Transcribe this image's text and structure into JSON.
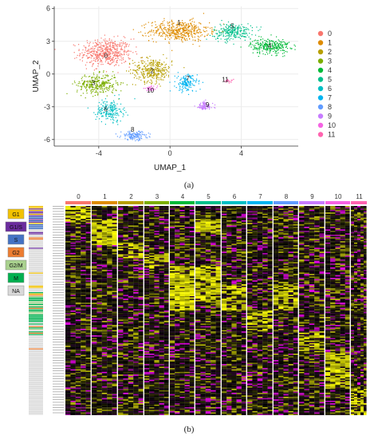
{
  "panel_a": {
    "caption": "(a)",
    "chart_data": {
      "type": "scatter",
      "xlabel": "UMAP_1",
      "ylabel": "UMAP_2",
      "xlim": [
        -6.5,
        7.2
      ],
      "ylim": [
        -6.6,
        6.2
      ],
      "x_ticks": [
        "-4",
        "0",
        "4"
      ],
      "x_tick_values": [
        -4,
        0,
        4
      ],
      "y_ticks": [
        "-6",
        "-3",
        "0",
        "3",
        "6"
      ],
      "y_tick_values": [
        -6,
        -3,
        0,
        3,
        6
      ],
      "grid": true,
      "legend_placement": "right",
      "series": [
        {
          "name": "0",
          "color": "#F8766D",
          "cx": -3.6,
          "cy": 2.0,
          "sx": 1.3,
          "sy": 1.15,
          "n": 520
        },
        {
          "name": "1",
          "color": "#DE8C00",
          "cx": 0.5,
          "cy": 4.0,
          "sx": 1.5,
          "sy": 0.85,
          "n": 470
        },
        {
          "name": "2",
          "color": "#B79F00",
          "cx": -1.0,
          "cy": 0.4,
          "sx": 1.0,
          "sy": 1.0,
          "n": 330
        },
        {
          "name": "3",
          "color": "#7CAE00",
          "cx": -4.1,
          "cy": -0.9,
          "sx": 1.05,
          "sy": 0.85,
          "n": 310
        },
        {
          "name": "4",
          "color": "#00BA38",
          "cx": 5.6,
          "cy": 2.6,
          "sx": 1.0,
          "sy": 0.65,
          "n": 270
        },
        {
          "name": "5",
          "color": "#00C08B",
          "cx": 3.5,
          "cy": 3.9,
          "sx": 1.0,
          "sy": 0.7,
          "n": 250
        },
        {
          "name": "6",
          "color": "#00BFC4",
          "cx": -3.4,
          "cy": -3.3,
          "sx": 0.7,
          "sy": 0.9,
          "n": 200
        },
        {
          "name": "7",
          "color": "#00B4F0",
          "cx": 0.9,
          "cy": -0.8,
          "sx": 0.55,
          "sy": 0.75,
          "n": 150
        },
        {
          "name": "8",
          "color": "#619CFF",
          "cx": -2.0,
          "cy": -5.6,
          "sx": 0.7,
          "sy": 0.35,
          "n": 140
        },
        {
          "name": "9",
          "color": "#C77CFF",
          "cx": 1.9,
          "cy": -2.9,
          "sx": 0.45,
          "sy": 0.4,
          "n": 90
        },
        {
          "name": "10",
          "color": "#F564E3",
          "cx": -1.1,
          "cy": -1.3,
          "sx": 0.35,
          "sy": 0.2,
          "n": 35
        },
        {
          "name": "11",
          "color": "#FF64B0",
          "cx": 3.2,
          "cy": -0.6,
          "sx": 0.3,
          "sy": 0.15,
          "n": 20
        }
      ],
      "cluster_labels": [
        {
          "text": "0",
          "x": -3.6,
          "y": 1.5
        },
        {
          "text": "1",
          "x": 0.5,
          "y": 4.5
        },
        {
          "text": "2",
          "x": -1.0,
          "y": 0.1
        },
        {
          "text": "3",
          "x": -4.3,
          "y": -1.0
        },
        {
          "text": "4",
          "x": 5.6,
          "y": 2.4
        },
        {
          "text": "5",
          "x": 3.5,
          "y": 4.2
        },
        {
          "text": "6",
          "x": -3.6,
          "y": -3.4
        },
        {
          "text": "7",
          "x": 1.0,
          "y": -0.6
        },
        {
          "text": "8",
          "x": -2.1,
          "y": -5.3
        },
        {
          "text": "9",
          "x": 2.1,
          "y": -3.0
        },
        {
          "text": "10",
          "x": -1.1,
          "y": -1.7
        },
        {
          "text": "11",
          "x": 3.1,
          "y": -0.7
        }
      ]
    }
  },
  "panel_b": {
    "caption": "(b)",
    "chart_data": {
      "type": "heatmap",
      "columns": [
        "0",
        "1",
        "2",
        "3",
        "4",
        "5",
        "6",
        "7",
        "8",
        "9",
        "10",
        "11"
      ],
      "column_colors": [
        "#F8766D",
        "#DE8C00",
        "#B79F00",
        "#7CAE00",
        "#00BA38",
        "#00C08B",
        "#00BFC4",
        "#00B4F0",
        "#619CFF",
        "#C77CFF",
        "#F564E3",
        "#FF64B0"
      ],
      "column_widths": [
        33,
        33,
        33,
        32,
        32,
        33,
        32,
        33,
        32,
        33,
        32,
        21
      ],
      "color_scale": [
        "#FF00FF",
        "#000000",
        "#FFFF00"
      ],
      "phase_legend": [
        {
          "label": "G1",
          "color": "#F2C200"
        },
        {
          "label": "G1/S",
          "color": "#6B2C9E"
        },
        {
          "label": "S",
          "color": "#4472C4"
        },
        {
          "label": "G2",
          "color": "#ED7D31"
        },
        {
          "label": "G2/M",
          "color": "#A9D18E"
        },
        {
          "label": "M",
          "color": "#00B050"
        },
        {
          "label": "NA",
          "color": "#D9D9D9"
        }
      ],
      "row_count": 160,
      "row_phases": [
        "G1",
        "G1",
        "G1/S",
        "G1",
        "G1/S",
        "G1/S",
        "G1",
        "G1/S",
        "S",
        "S",
        "G1/S",
        "S",
        "G1/S",
        "G1",
        "S",
        "S",
        "S",
        "S",
        "NA",
        "NA",
        "G1/S",
        "G1/S",
        "NA",
        "NA",
        "G2",
        "G2",
        "NA",
        "NA",
        "NA",
        "NA",
        "NA",
        "NA",
        "G1/S",
        "NA",
        "NA",
        "NA",
        "NA",
        "NA",
        "NA",
        "NA",
        "NA",
        "NA",
        "NA",
        "NA",
        "NA",
        "NA",
        "NA",
        "NA",
        "NA",
        "NA",
        "NA",
        "G1",
        "NA",
        "NA",
        "NA",
        "NA",
        "NA",
        "NA",
        "NA",
        "NA",
        "NA",
        "G1",
        "G1",
        "NA",
        "NA",
        "NA",
        "M",
        "G1",
        "G2",
        "G2/M",
        "M",
        "M",
        "M",
        "G2/M",
        "G2/M",
        "M",
        "G2/M",
        "M",
        "G2",
        "M",
        "M",
        "G2/M",
        "G2/M",
        "M",
        "M",
        "M",
        "M",
        "M",
        "M",
        "NA",
        "M",
        "NA",
        "G2",
        "M",
        "G2/M",
        "NA",
        "M",
        "G2",
        "M",
        "NA",
        "NA",
        "NA",
        "NA",
        "NA",
        "NA",
        "NA",
        "NA",
        "NA",
        "NA",
        "G2",
        "NA",
        "NA",
        "NA",
        "NA",
        "NA",
        "NA",
        "NA",
        "NA",
        "NA",
        "NA",
        "NA",
        "NA",
        "NA",
        "NA",
        "NA",
        "NA",
        "NA",
        "NA",
        "NA",
        "NA",
        "NA",
        "NA",
        "NA",
        "NA",
        "NA",
        "NA",
        "NA",
        "NA",
        "NA",
        "NA",
        "NA",
        "NA",
        "NA",
        "NA",
        "NA",
        "NA",
        "NA",
        "NA",
        "NA",
        "NA",
        "NA",
        "NA",
        "NA",
        "NA",
        "NA",
        "NA",
        "NA",
        "NA",
        "NA",
        "NA"
      ],
      "cluster_marker_blocks": [
        {
          "cluster": "0",
          "row_range": [
            0,
            12
          ],
          "level": 0.7
        },
        {
          "cluster": "1",
          "row_range": [
            10,
            30
          ],
          "level": 0.8
        },
        {
          "cluster": "2",
          "row_range": [
            28,
            40
          ],
          "level": 0.6
        },
        {
          "cluster": "3",
          "row_range": [
            36,
            48
          ],
          "level": 0.55
        },
        {
          "cluster": "4",
          "row_range": [
            46,
            80
          ],
          "level": 0.9
        },
        {
          "cluster": "5",
          "row_range": [
            10,
            20
          ],
          "level": 0.85
        },
        {
          "cluster": "5b",
          "row_range": [
            46,
            75
          ],
          "level": 0.75
        },
        {
          "cluster": "6",
          "row_range": [
            60,
            80
          ],
          "level": 0.6
        },
        {
          "cluster": "7",
          "row_range": [
            80,
            96
          ],
          "level": 0.55
        },
        {
          "cluster": "8",
          "row_range": [
            60,
            80
          ],
          "level": 0.7
        },
        {
          "cluster": "9",
          "row_range": [
            96,
            112
          ],
          "level": 0.6
        },
        {
          "cluster": "10",
          "row_range": [
            112,
            140
          ],
          "level": 0.75
        },
        {
          "cluster": "11",
          "row_range": [
            140,
            160
          ],
          "level": 0.6
        }
      ]
    }
  }
}
